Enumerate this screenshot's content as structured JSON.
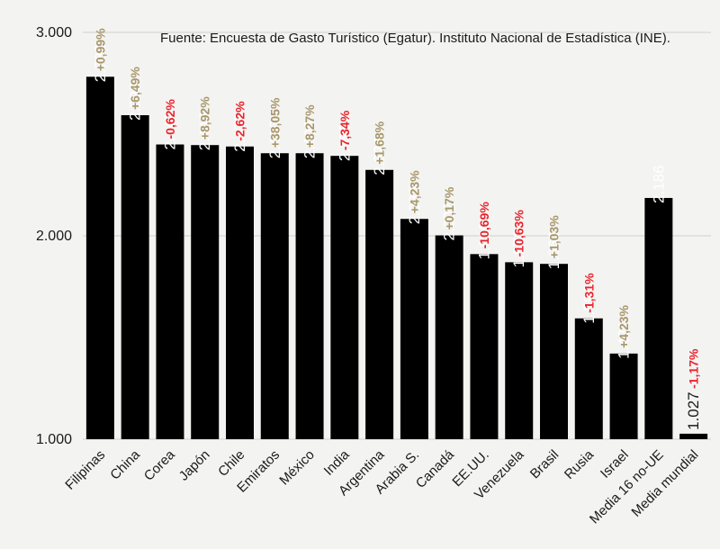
{
  "source_note": "Fuente: Encuesta de Gasto Turístico (Egatur). Instituto Nacional de Estadística (INE).",
  "colors": {
    "bar": "#000000",
    "bar_label": "#ffffff",
    "change_positive": "#a8976a",
    "change_negative": "#e8262c",
    "grid": "#cfcfcf",
    "axis_text": "#1a1a1a",
    "background": "#f3f3f2"
  },
  "chart_data": {
    "type": "bar",
    "title": "",
    "xlabel": "",
    "ylabel": "",
    "ylim": [
      1000,
      3000
    ],
    "yticks": [
      1000,
      2000,
      3000
    ],
    "ytick_labels": [
      "1.000",
      "2.000",
      "3.000"
    ],
    "grid": true,
    "categories": [
      "Filipinas",
      "China",
      "Corea",
      "Japón",
      "Chile",
      "Emiratos",
      "México",
      "India",
      "Argentina",
      "Arabia S.",
      "Canadá",
      "EE.UU.",
      "Venezuela",
      "Brasil",
      "Rusia",
      "Israel",
      "Media 16 no-UE",
      "Media mundial"
    ],
    "values": [
      2782,
      2593,
      2449,
      2446,
      2439,
      2406,
      2406,
      2393,
      2324,
      2083,
      2002,
      1910,
      1870,
      1862,
      1594,
      1421,
      2186,
      1027
    ],
    "value_labels": [
      "2.782",
      "2.593",
      "2.449",
      "2.446",
      "2.439",
      "2.406",
      "2.406",
      "2.393",
      "2.324",
      "2.083",
      "2.002",
      "1.910",
      "1.870",
      "1.862",
      "1.594",
      "1.421",
      "2.186",
      "1.027"
    ],
    "changes": [
      "+0,99%",
      "+6,49%",
      "-0,62%",
      "+8,92%",
      "-2,62%",
      "+38,05%",
      "+8,27%",
      "-7,34%",
      "+1,68%",
      "+4,23%",
      "+0,17%",
      "-10,69%",
      "-10,63%",
      "+1,03%",
      "-1,31%",
      "+4,23%",
      "",
      "-1,17%"
    ],
    "change_values": [
      0.99,
      6.49,
      -0.62,
      8.92,
      -2.62,
      38.05,
      8.27,
      -7.34,
      1.68,
      4.23,
      0.17,
      -10.69,
      -10.63,
      1.03,
      -1.31,
      4.23,
      null,
      -1.17
    ]
  }
}
